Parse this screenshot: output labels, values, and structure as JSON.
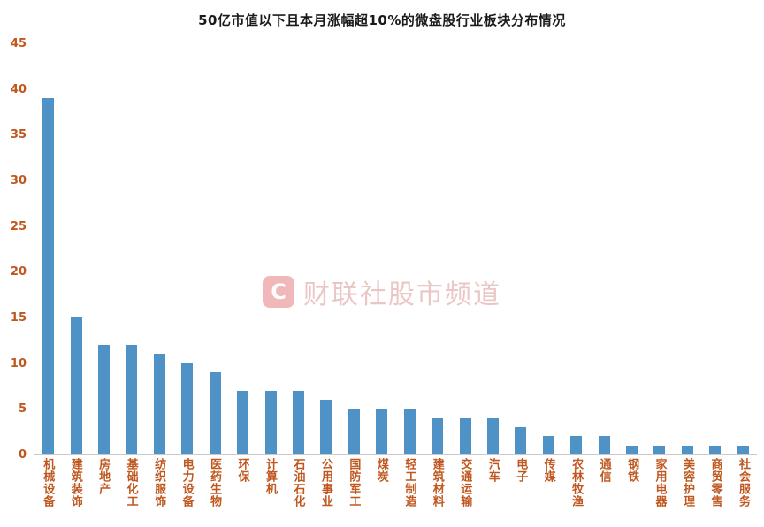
{
  "watermark": {
    "icon_letter": "C",
    "text": "财联社股市频道",
    "color": "#DA9A94"
  },
  "chart_data": {
    "type": "bar",
    "title": "50亿市值以下且本月涨幅超10%的微盘股行业板块分布情况",
    "categories": [
      "机械设备",
      "建筑装饰",
      "房地产",
      "基础化工",
      "纺织服饰",
      "电力设备",
      "医药生物",
      "环保",
      "计算机",
      "石油石化",
      "公用事业",
      "国防军工",
      "煤炭",
      "轻工制造",
      "建筑材料",
      "交通运输",
      "汽车",
      "电子",
      "传媒",
      "农林牧渔",
      "通信",
      "钢铁",
      "家用电器",
      "美容护理",
      "商贸零售",
      "社会服务"
    ],
    "values": [
      39,
      15,
      12,
      12,
      11,
      10,
      9,
      7,
      7,
      7,
      6,
      5,
      5,
      5,
      4,
      4,
      4,
      3,
      2,
      2,
      2,
      1,
      1,
      1,
      1,
      1
    ],
    "xlabel": "",
    "ylabel": "",
    "ylim": [
      0,
      45
    ],
    "yticks": [
      0,
      5,
      10,
      15,
      20,
      25,
      30,
      35,
      40,
      45
    ],
    "grid": false,
    "legend_position": "none",
    "bar_color": "#4E92C6",
    "tick_label_color": "#C0571E"
  }
}
